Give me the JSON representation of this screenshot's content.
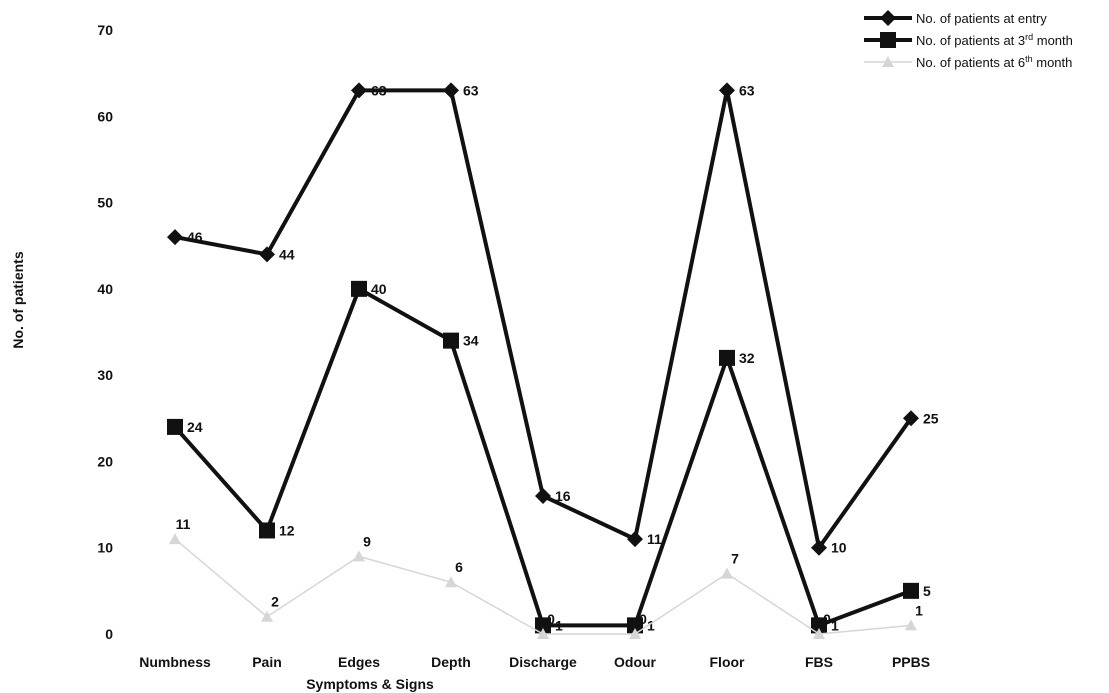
{
  "chart_data": {
    "type": "line",
    "categories": [
      "Numbness",
      "Pain",
      "Edges",
      "Depth",
      "Discharge",
      "Odour",
      "Floor",
      "FBS",
      "PPBS"
    ],
    "xlabel": "Symptoms & Signs",
    "ylabel": "No. of patients",
    "ylim": [
      0,
      70
    ],
    "yticks": [
      0,
      10,
      20,
      30,
      40,
      50,
      60,
      70
    ],
    "grid": false,
    "legend_position": "top-right",
    "series": [
      {
        "name": "No. of patients at entry",
        "name_sup": "",
        "name_suffix": "",
        "marker": "diamond",
        "color": "#111111",
        "values": [
          46,
          44,
          63,
          63,
          16,
          11,
          63,
          10,
          25
        ],
        "labels": [
          "46",
          "44",
          "63",
          "63",
          "16",
          "11",
          "63",
          "10",
          "25"
        ]
      },
      {
        "name": "No. of patients at 3",
        "name_sup": "rd",
        "name_suffix": " month",
        "marker": "square",
        "color": "#111111",
        "values": [
          24,
          12,
          40,
          34,
          1,
          1,
          32,
          1,
          5
        ],
        "labels": [
          "24",
          "12",
          "40",
          "34",
          "1",
          "1",
          "32",
          "1",
          "5"
        ]
      },
      {
        "name": "No. of patients at 6",
        "name_sup": "th",
        "name_suffix": " month",
        "marker": "triangle",
        "color": "#d6d6d6",
        "values": [
          11,
          2,
          9,
          6,
          0,
          0,
          7,
          0,
          1
        ],
        "labels": [
          "11",
          "2",
          "9",
          "6",
          "0",
          "0",
          "7",
          "0",
          "1"
        ]
      }
    ]
  }
}
